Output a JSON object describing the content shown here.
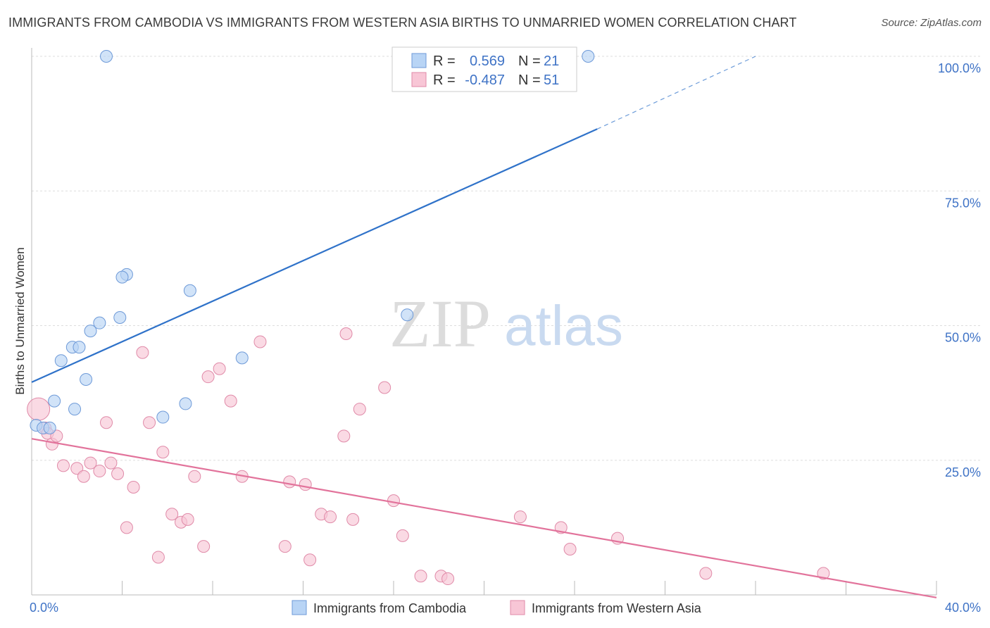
{
  "header": {
    "title": "IMMIGRANTS FROM CAMBODIA VS IMMIGRANTS FROM WESTERN ASIA BIRTHS TO UNMARRIED WOMEN CORRELATION CHART",
    "source": "Source: ZipAtlas.com"
  },
  "watermark": {
    "part1": "ZIP",
    "part2": "atlas"
  },
  "colors": {
    "cambodia_fill": "#b8d4f5",
    "cambodia_stroke": "#6e9ad8",
    "cambodia_line": "#2f72c9",
    "wasia_fill": "#f8c6d6",
    "wasia_stroke": "#e08aa8",
    "wasia_line": "#e2739b",
    "axis_label": "#3f73c6",
    "grid": "#dddddd"
  },
  "chart_data": {
    "type": "scatter",
    "xlabel": "",
    "ylabel": "Births to Unmarried Women",
    "xlim": [
      0,
      40
    ],
    "ylim": [
      0,
      100
    ],
    "x_ticks": [
      "0.0%",
      "40.0%"
    ],
    "y_ticks": [
      {
        "value": 25,
        "label": "25.0%"
      },
      {
        "value": 50,
        "label": "50.0%"
      },
      {
        "value": 75,
        "label": "75.0%"
      },
      {
        "value": 100,
        "label": "100.0%"
      }
    ],
    "grid": true,
    "legend": {
      "placement": "top-center",
      "entries": [
        {
          "r_label": "R =",
          "r_value": "0.569",
          "n_label": "N =",
          "n_value": "21"
        },
        {
          "r_label": "R =",
          "r_value": "-0.487",
          "n_label": "N =",
          "n_value": "51"
        }
      ]
    },
    "series": [
      {
        "name": "Immigrants from Cambodia",
        "points": [
          {
            "x": 3.3,
            "y": 100
          },
          {
            "x": 24.6,
            "y": 100
          },
          {
            "x": 0.2,
            "y": 31.5
          },
          {
            "x": 0.5,
            "y": 31
          },
          {
            "x": 0.8,
            "y": 31
          },
          {
            "x": 1.9,
            "y": 34.5
          },
          {
            "x": 1.0,
            "y": 36
          },
          {
            "x": 2.4,
            "y": 40
          },
          {
            "x": 1.3,
            "y": 43.5
          },
          {
            "x": 1.8,
            "y": 46
          },
          {
            "x": 2.1,
            "y": 46
          },
          {
            "x": 3.0,
            "y": 50.5
          },
          {
            "x": 2.6,
            "y": 49
          },
          {
            "x": 3.9,
            "y": 51.5
          },
          {
            "x": 4.2,
            "y": 59.5
          },
          {
            "x": 4.0,
            "y": 59
          },
          {
            "x": 7.0,
            "y": 56.5
          },
          {
            "x": 5.8,
            "y": 33
          },
          {
            "x": 6.8,
            "y": 35.5
          },
          {
            "x": 9.3,
            "y": 44
          },
          {
            "x": 16.6,
            "y": 52
          }
        ],
        "trend": {
          "x0": 0,
          "y0": 39.5,
          "x1": 25,
          "y1": 86.5,
          "dash_x1": 32,
          "dash_y1": 100
        }
      },
      {
        "name": "Immigrants from Western Asia",
        "points": [
          {
            "x": 0.3,
            "y": 34.5
          },
          {
            "x": 0.6,
            "y": 31
          },
          {
            "x": 0.7,
            "y": 30
          },
          {
            "x": 0.9,
            "y": 28
          },
          {
            "x": 1.1,
            "y": 29.5
          },
          {
            "x": 1.4,
            "y": 24
          },
          {
            "x": 2.0,
            "y": 23.5
          },
          {
            "x": 2.3,
            "y": 22
          },
          {
            "x": 2.6,
            "y": 24.5
          },
          {
            "x": 3.0,
            "y": 23
          },
          {
            "x": 3.3,
            "y": 32
          },
          {
            "x": 3.5,
            "y": 24.5
          },
          {
            "x": 3.8,
            "y": 22.5
          },
          {
            "x": 4.2,
            "y": 12.5
          },
          {
            "x": 4.5,
            "y": 20
          },
          {
            "x": 4.9,
            "y": 45
          },
          {
            "x": 5.2,
            "y": 32
          },
          {
            "x": 5.6,
            "y": 7
          },
          {
            "x": 5.8,
            "y": 26.5
          },
          {
            "x": 6.2,
            "y": 15
          },
          {
            "x": 6.6,
            "y": 13.5
          },
          {
            "x": 6.9,
            "y": 14
          },
          {
            "x": 7.2,
            "y": 22
          },
          {
            "x": 7.6,
            "y": 9
          },
          {
            "x": 7.8,
            "y": 40.5
          },
          {
            "x": 8.3,
            "y": 42
          },
          {
            "x": 8.8,
            "y": 36
          },
          {
            "x": 9.3,
            "y": 22
          },
          {
            "x": 10.1,
            "y": 47
          },
          {
            "x": 11.2,
            "y": 9
          },
          {
            "x": 11.4,
            "y": 21
          },
          {
            "x": 12.1,
            "y": 20.5
          },
          {
            "x": 12.3,
            "y": 6.5
          },
          {
            "x": 12.8,
            "y": 15
          },
          {
            "x": 13.2,
            "y": 14.5
          },
          {
            "x": 13.9,
            "y": 48.5
          },
          {
            "x": 13.8,
            "y": 29.5
          },
          {
            "x": 14.2,
            "y": 14
          },
          {
            "x": 14.5,
            "y": 34.5
          },
          {
            "x": 15.6,
            "y": 38.5
          },
          {
            "x": 16.0,
            "y": 17.5
          },
          {
            "x": 16.4,
            "y": 11
          },
          {
            "x": 17.2,
            "y": 3.5
          },
          {
            "x": 18.1,
            "y": 3.5
          },
          {
            "x": 18.4,
            "y": 3
          },
          {
            "x": 21.6,
            "y": 14.5
          },
          {
            "x": 23.4,
            "y": 12.5
          },
          {
            "x": 23.8,
            "y": 8.5
          },
          {
            "x": 25.9,
            "y": 10.5
          },
          {
            "x": 29.8,
            "y": 4
          },
          {
            "x": 35.0,
            "y": 4
          }
        ],
        "trend": {
          "x0": 0,
          "y0": 29,
          "x1": 40,
          "y1": -0.5
        }
      }
    ]
  }
}
